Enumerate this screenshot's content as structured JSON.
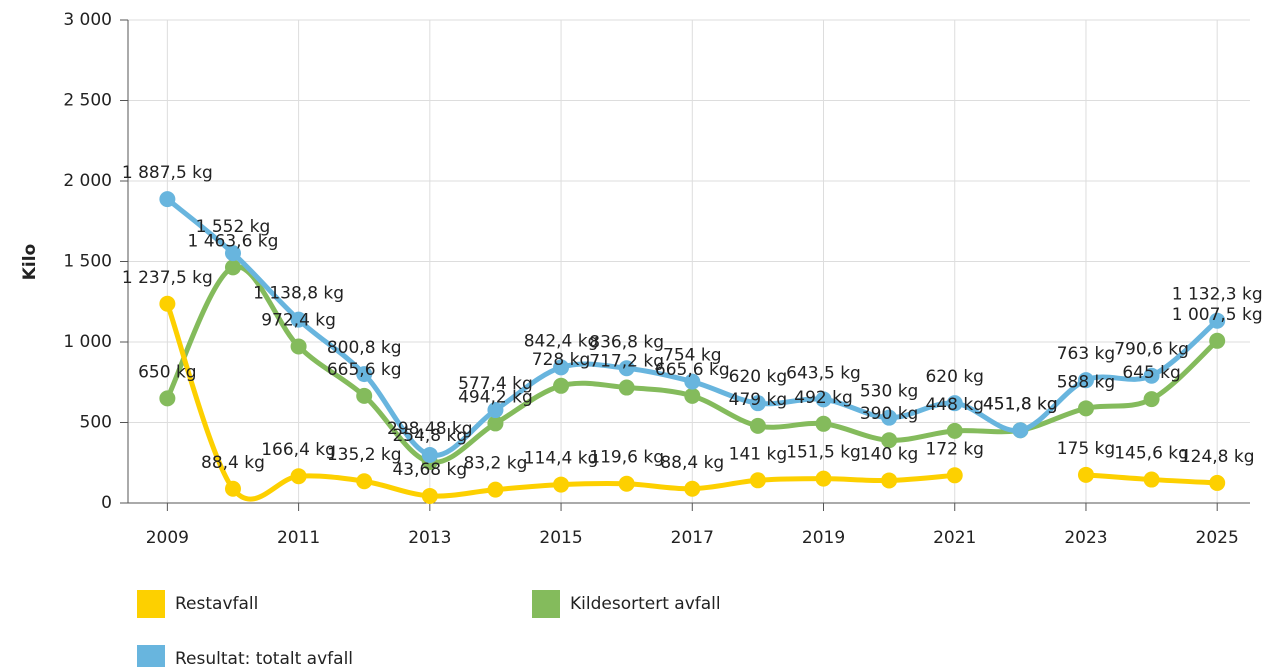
{
  "chart_data": {
    "type": "line",
    "ylabel": "Kilo",
    "x": [
      2009,
      2010,
      2011,
      2012,
      2013,
      2014,
      2015,
      2016,
      2017,
      2018,
      2019,
      2020,
      2021,
      2022,
      2023,
      2024,
      2025
    ],
    "xlim": [
      2008.4,
      2025.5
    ],
    "xticks": [
      2009,
      2011,
      2013,
      2015,
      2017,
      2019,
      2021,
      2023,
      2025
    ],
    "ylim": [
      0,
      3000
    ],
    "yticks": [
      0,
      500,
      {
        "value": 1000,
        "label": "1 000"
      },
      {
        "value": 1500,
        "label": "1 500"
      },
      {
        "value": 2000,
        "label": "2 000"
      },
      {
        "value": 2500,
        "label": "2 500"
      },
      {
        "value": 3000,
        "label": "3 000"
      }
    ],
    "grid": true,
    "legend": "bottom",
    "series": [
      {
        "name": "Restavfall",
        "color": "#fdd000",
        "values": [
          1237.5,
          88.4,
          166.4,
          135.2,
          43.68,
          83.2,
          114.4,
          119.6,
          88.4,
          141,
          151.5,
          140,
          172,
          null,
          175,
          145.6,
          124.8
        ],
        "value_labels": [
          "1 237,5 kg",
          "88,4 kg",
          "166,4 kg",
          "135,2 kg",
          "43,68 kg",
          "83,2 kg",
          "114,4 kg",
          "119,6 kg",
          "88,4 kg",
          "141 kg",
          "151,5 kg",
          "140 kg",
          "172 kg",
          null,
          "175 kg",
          "145,6 kg",
          "124,8 kg"
        ]
      },
      {
        "name": "Kildesortert avfall",
        "color": "#84bb5c",
        "values": [
          650,
          1463.6,
          972.4,
          665.6,
          254.8,
          494.2,
          728,
          717.2,
          665.6,
          479,
          492,
          390,
          448,
          451.8,
          588,
          645,
          1007.5
        ],
        "value_labels": [
          "650 kg",
          "1 463,6 kg",
          "972,4 kg",
          "665,6 kg",
          "254,8 kg",
          "494,2 kg",
          "728 kg",
          "717,2 kg",
          "665,6 kg",
          "479 kg",
          "492 kg",
          "390 kg",
          "448 kg",
          "451,8 kg",
          "588 kg",
          "645 kg",
          "1 007,5 kg"
        ]
      },
      {
        "name": "Resultat: totalt avfall",
        "color": "#68b5de",
        "values": [
          1887.5,
          1552,
          1138.8,
          800.8,
          298.48,
          577.4,
          842.4,
          836.8,
          754,
          620,
          643.5,
          530,
          620,
          451.8,
          763,
          790.6,
          1132.3
        ],
        "value_labels": [
          "1 887,5 kg",
          "1 552 kg",
          "1 138,8 kg",
          "800,8 kg",
          "298,48 kg",
          "577,4 kg",
          "842,4 kg",
          "836,8 kg",
          "754 kg",
          "620 kg",
          "643,5 kg",
          "530 kg",
          "620 kg",
          "451,8 kg",
          "763 kg",
          "790,6 kg",
          "1 132,3 kg"
        ]
      }
    ]
  }
}
